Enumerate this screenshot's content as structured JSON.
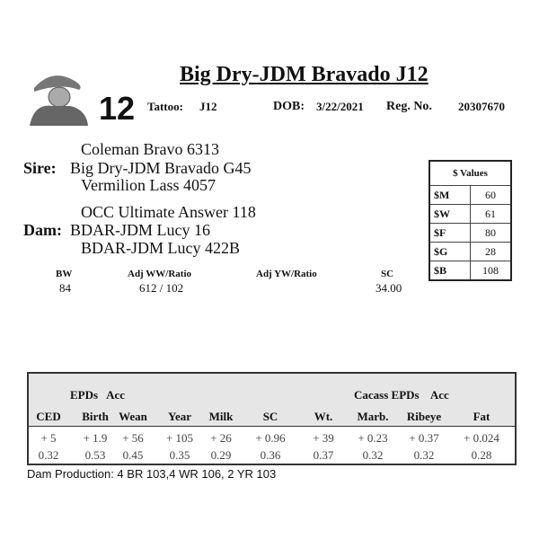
{
  "title": "Big Dry-JDM Bravado J12",
  "lot_number": "12",
  "tattoo_label": "Tattoo:",
  "tattoo": "J12",
  "dob_label": "DOB:",
  "dob": "3/22/2021",
  "reg_label": "Reg. No.",
  "reg": "20307670",
  "pedigree": {
    "sire_label": "Sire:",
    "sire_sire": "Coleman Bravo 6313",
    "sire": "Big Dry-JDM Bravado G45",
    "sire_dam": "Vermilion Lass 4057",
    "dam_label": "Dam:",
    "dam_sire": "OCC Ultimate Answer 118",
    "dam": "BDAR-JDM Lucy 16",
    "dam_dam": "BDAR-JDM Lucy 422B"
  },
  "perf": {
    "bw_label": "BW",
    "bw": "84",
    "ww_label": "Adj WW/Ratio",
    "ww": "612 / 102",
    "yw_label": "Adj YW/Ratio",
    "yw": "",
    "sc_label": "SC",
    "sc": "34.00"
  },
  "values": {
    "header": "$ Values",
    "rows": [
      {
        "k": "$M",
        "v": "60"
      },
      {
        "k": "$W",
        "v": "61"
      },
      {
        "k": "$F",
        "v": "80"
      },
      {
        "k": "$G",
        "v": "28"
      },
      {
        "k": "$B",
        "v": "108"
      }
    ]
  },
  "epd": {
    "group1": "EPDs   Acc",
    "group2": "Cacass EPDs    Acc",
    "columns": [
      "CED",
      "Birth",
      "Wean",
      "Year",
      "Milk",
      "SC",
      "Wt.",
      "Marb.",
      "Ribeye",
      "Fat"
    ],
    "values": [
      "+ 5",
      "+ 1.9",
      "+ 56",
      "+ 105",
      "+ 26",
      "+ 0.96",
      "+ 39",
      "+ 0.23",
      "+ 0.37",
      "+ 0.024"
    ],
    "acc": [
      "0.32",
      "0.53",
      "0.45",
      "0.35",
      "0.29",
      "0.36",
      "0.37",
      "0.32",
      "0.32",
      "0.28"
    ]
  },
  "dam_production": "Dam Production: 4 BR 103,4 WR 106, 2 YR 103"
}
